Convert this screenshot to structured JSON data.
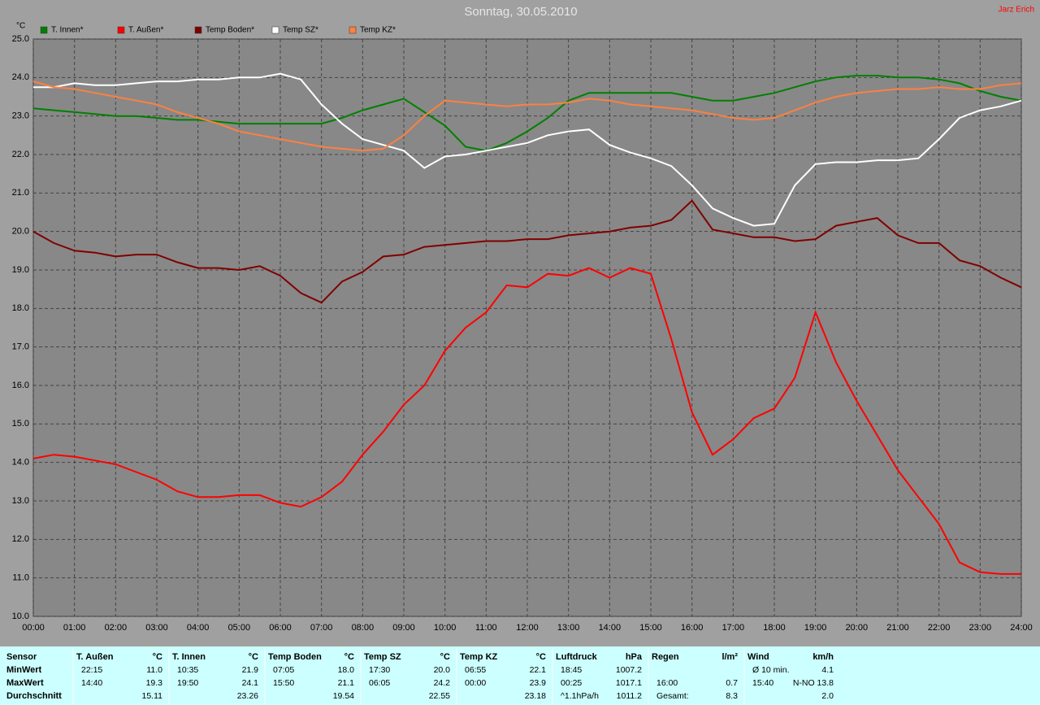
{
  "chart_data": {
    "type": "line",
    "title": "Sonntag, 30.05.2010",
    "author": "Jarz Erich",
    "y_label": "°C",
    "grid": true,
    "x": [
      0,
      0.5,
      1,
      1.5,
      2,
      2.5,
      3,
      3.5,
      4,
      4.5,
      5,
      5.5,
      6,
      6.5,
      7,
      7.5,
      8,
      8.5,
      9,
      9.5,
      10,
      10.5,
      11,
      11.5,
      12,
      12.5,
      13,
      13.5,
      14,
      14.5,
      15,
      15.5,
      16,
      16.5,
      17,
      17.5,
      18,
      18.5,
      19,
      19.5,
      20,
      20.5,
      21,
      21.5,
      22,
      22.5,
      23,
      23.5,
      24
    ],
    "xlim": [
      0,
      24
    ],
    "xticks": [
      {
        "value": 0,
        "label": "00:00"
      },
      {
        "value": 1,
        "label": "01:00"
      },
      {
        "value": 2,
        "label": "02:00"
      },
      {
        "value": 3,
        "label": "03:00"
      },
      {
        "value": 4,
        "label": "04:00"
      },
      {
        "value": 5,
        "label": "05:00"
      },
      {
        "value": 6,
        "label": "06:00"
      },
      {
        "value": 7,
        "label": "07:00"
      },
      {
        "value": 8,
        "label": "08:00"
      },
      {
        "value": 9,
        "label": "09:00"
      },
      {
        "value": 10,
        "label": "10:00"
      },
      {
        "value": 11,
        "label": "11:00"
      },
      {
        "value": 12,
        "label": "12:00"
      },
      {
        "value": 13,
        "label": "13:00"
      },
      {
        "value": 14,
        "label": "14:00"
      },
      {
        "value": 15,
        "label": "15:00"
      },
      {
        "value": 16,
        "label": "16:00"
      },
      {
        "value": 17,
        "label": "17:00"
      },
      {
        "value": 18,
        "label": "18:00"
      },
      {
        "value": 19,
        "label": "19:00"
      },
      {
        "value": 20,
        "label": "20:00"
      },
      {
        "value": 21,
        "label": "21:00"
      },
      {
        "value": 22,
        "label": "22:00"
      },
      {
        "value": 23,
        "label": "23:00"
      },
      {
        "value": 24,
        "label": "24:00"
      }
    ],
    "ylim": [
      10,
      25
    ],
    "yticks": [
      {
        "value": 10,
        "label": "10.0"
      },
      {
        "value": 11,
        "label": "11.0"
      },
      {
        "value": 12,
        "label": "12.0"
      },
      {
        "value": 13,
        "label": "13.0"
      },
      {
        "value": 14,
        "label": "14.0"
      },
      {
        "value": 15,
        "label": "15.0"
      },
      {
        "value": 16,
        "label": "16.0"
      },
      {
        "value": 17,
        "label": "17.0"
      },
      {
        "value": 18,
        "label": "18.0"
      },
      {
        "value": 19,
        "label": "19.0"
      },
      {
        "value": 20,
        "label": "20.0"
      },
      {
        "value": 21,
        "label": "21.0"
      },
      {
        "value": 22,
        "label": "22.0"
      },
      {
        "value": 23,
        "label": "23.0"
      },
      {
        "value": 24,
        "label": "24.0"
      },
      {
        "value": 25,
        "label": "25.0"
      }
    ],
    "series": [
      {
        "name": "T. Innen*",
        "color": "#008000",
        "values": [
          23.2,
          23.15,
          23.1,
          23.05,
          23.0,
          23.0,
          22.95,
          22.9,
          22.9,
          22.85,
          22.8,
          22.8,
          22.8,
          22.8,
          22.8,
          22.95,
          23.15,
          23.3,
          23.45,
          23.1,
          22.75,
          22.2,
          22.1,
          22.3,
          22.6,
          22.95,
          23.4,
          23.6,
          23.6,
          23.6,
          23.6,
          23.6,
          23.5,
          23.4,
          23.4,
          23.5,
          23.6,
          23.75,
          23.9,
          24.0,
          24.05,
          24.05,
          24.0,
          24.0,
          23.95,
          23.85,
          23.65,
          23.5,
          23.4
        ]
      },
      {
        "name": "T. Außen*",
        "color": "#ff0000",
        "values": [
          14.1,
          14.2,
          14.15,
          14.05,
          13.95,
          13.75,
          13.55,
          13.25,
          13.1,
          13.1,
          13.15,
          13.15,
          12.95,
          12.85,
          13.1,
          13.5,
          14.2,
          14.8,
          15.5,
          16.0,
          16.9,
          17.5,
          17.9,
          18.6,
          18.55,
          18.9,
          18.85,
          19.05,
          18.8,
          19.05,
          18.9,
          17.2,
          15.3,
          14.2,
          14.6,
          15.15,
          15.4,
          16.2,
          17.9,
          16.6,
          15.6,
          14.7,
          13.8,
          13.1,
          12.4,
          11.4,
          11.15,
          11.1,
          11.1
        ]
      },
      {
        "name": "Temp Boden*",
        "color": "#800000",
        "values": [
          20.0,
          19.7,
          19.5,
          19.45,
          19.35,
          19.4,
          19.4,
          19.2,
          19.05,
          19.05,
          19.0,
          19.1,
          18.85,
          18.4,
          18.15,
          18.7,
          18.95,
          19.35,
          19.4,
          19.6,
          19.65,
          19.7,
          19.75,
          19.75,
          19.8,
          19.8,
          19.9,
          19.95,
          20.0,
          20.1,
          20.15,
          20.3,
          20.8,
          20.05,
          19.95,
          19.85,
          19.85,
          19.75,
          19.8,
          20.15,
          20.25,
          20.35,
          19.9,
          19.7,
          19.7,
          19.25,
          19.1,
          18.8,
          18.55
        ]
      },
      {
        "name": "Temp SZ*",
        "color": "#ffffff",
        "values": [
          23.75,
          23.75,
          23.85,
          23.8,
          23.8,
          23.85,
          23.9,
          23.9,
          23.95,
          23.95,
          24.0,
          24.0,
          24.1,
          23.95,
          23.3,
          22.8,
          22.4,
          22.25,
          22.1,
          21.65,
          21.95,
          22.0,
          22.1,
          22.2,
          22.3,
          22.5,
          22.6,
          22.65,
          22.25,
          22.05,
          21.9,
          21.7,
          21.2,
          20.6,
          20.35,
          20.15,
          20.2,
          21.2,
          21.75,
          21.8,
          21.8,
          21.85,
          21.85,
          21.9,
          22.4,
          22.95,
          23.15,
          23.25,
          23.4
        ]
      },
      {
        "name": "Temp KZ*",
        "color": "#ff8040",
        "values": [
          23.9,
          23.75,
          23.7,
          23.6,
          23.5,
          23.4,
          23.3,
          23.1,
          22.95,
          22.8,
          22.6,
          22.5,
          22.4,
          22.3,
          22.2,
          22.15,
          22.1,
          22.15,
          22.5,
          23.0,
          23.4,
          23.35,
          23.3,
          23.25,
          23.3,
          23.3,
          23.35,
          23.45,
          23.4,
          23.3,
          23.25,
          23.2,
          23.15,
          23.05,
          22.95,
          22.9,
          22.95,
          23.15,
          23.35,
          23.5,
          23.6,
          23.65,
          23.7,
          23.7,
          23.75,
          23.7,
          23.7,
          23.8,
          23.85
        ]
      }
    ]
  },
  "table": {
    "header": "Sensor",
    "row_labels": [
      "MinWert",
      "MaxWert",
      "Durchschnitt"
    ],
    "columns": [
      {
        "name": "T. Außen",
        "unit": "°C",
        "cells": [
          {
            "time": "22:15",
            "value": "11.0"
          },
          {
            "time": "14:40",
            "value": "19.3"
          },
          {
            "value": "15.11"
          }
        ]
      },
      {
        "name": "T. Innen",
        "unit": "°C",
        "cells": [
          {
            "time": "10:35",
            "value": "21.9"
          },
          {
            "time": "19:50",
            "value": "24.1"
          },
          {
            "value": "23.26"
          }
        ]
      },
      {
        "name": "Temp Boden",
        "unit": "°C",
        "cells": [
          {
            "time": "07:05",
            "value": "18.0"
          },
          {
            "time": "15:50",
            "value": "21.1"
          },
          {
            "value": "19.54"
          }
        ]
      },
      {
        "name": "Temp SZ",
        "unit": "°C",
        "cells": [
          {
            "time": "17:30",
            "value": "20.0"
          },
          {
            "time": "06:05",
            "value": "24.2"
          },
          {
            "value": "22.55"
          }
        ]
      },
      {
        "name": "Temp KZ",
        "unit": "°C",
        "cells": [
          {
            "time": "06:55",
            "value": "22.1"
          },
          {
            "time": "00:00",
            "value": "23.9"
          },
          {
            "value": "23.18"
          }
        ]
      },
      {
        "name": "Luftdruck",
        "unit": "hPa",
        "cells": [
          {
            "time": "18:45",
            "value": "1007.2"
          },
          {
            "time": "00:25",
            "value": "1017.1"
          },
          {
            "time": "^1.1hPa/h",
            "value": "1011.2"
          }
        ]
      },
      {
        "name": "Regen",
        "unit": "l/m²",
        "cells": [
          null,
          {
            "time": "16:00",
            "value": "0.7"
          },
          {
            "time": "Gesamt:",
            "value": "8.3"
          }
        ]
      },
      {
        "name": "Wind",
        "unit": "km/h",
        "cells": [
          {
            "time": "Ø 10 min.",
            "value": "4.1"
          },
          {
            "time": "15:40",
            "value": "N-NO 13.8"
          },
          {
            "value": "2.0"
          }
        ]
      }
    ]
  }
}
